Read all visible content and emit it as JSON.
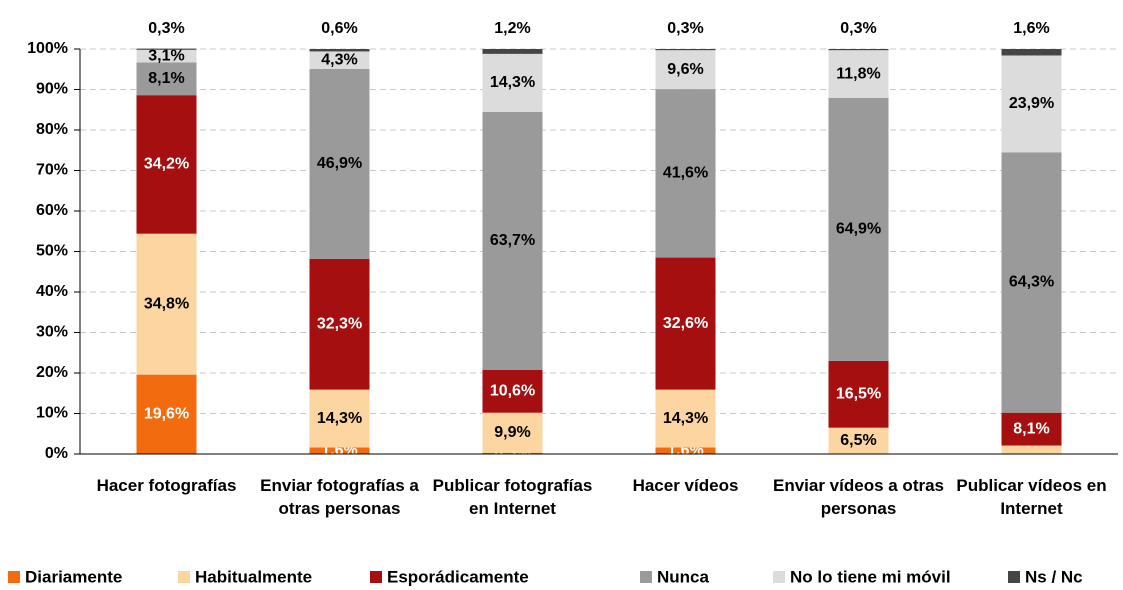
{
  "chart_data": {
    "type": "stacked_bar",
    "categories": [
      "Hacer fotografías",
      "Enviar fotografías a otras personas",
      "Publicar fotografías en Internet",
      "Hacer vídeos",
      "Enviar vídeos a otras personas",
      "Publicar vídeos en Internet"
    ],
    "series": [
      {
        "name": "Diariamente",
        "color": "#f26b0f",
        "label_color": "#ffffff",
        "values": [
          19.6,
          1.6,
          0.3,
          1.6,
          0,
          0
        ],
        "value_labels": [
          "19,6%",
          "1,6%",
          "0,3%",
          "1,6%",
          null,
          null
        ]
      },
      {
        "name": "Habitualmente",
        "color": "#fdd5a0",
        "label_color": "#000000",
        "values": [
          34.8,
          14.3,
          9.9,
          14.3,
          6.5,
          2.1
        ],
        "value_labels": [
          "34,8%",
          "14,3%",
          "9,9%",
          "14,3%",
          "6,5%",
          null
        ]
      },
      {
        "name": "Esporádicamente",
        "color": "#a50f0f",
        "label_color": "#ffffff",
        "values": [
          34.2,
          32.3,
          10.6,
          32.6,
          16.5,
          8.1
        ],
        "value_labels": [
          "34,2%",
          "32,3%",
          "10,6%",
          "32,6%",
          "16,5%",
          "8,1%"
        ]
      },
      {
        "name": "Nunca",
        "color": "#9a9a9a",
        "label_color": "#000000",
        "values": [
          8.1,
          46.9,
          63.7,
          41.6,
          64.9,
          64.3
        ],
        "value_labels": [
          "8,1%",
          "46,9%",
          "63,7%",
          "41,6%",
          "64,9%",
          "64,3%"
        ]
      },
      {
        "name": "No lo tiene mi móvil",
        "color": "#dcdcdc",
        "label_color": "#000000",
        "values": [
          3.1,
          4.3,
          14.3,
          9.6,
          11.8,
          23.9
        ],
        "value_labels": [
          "3,1%",
          "4,3%",
          "14,3%",
          "9,6%",
          "11,8%",
          "23,9%"
        ]
      },
      {
        "name": "Ns / Nc",
        "color": "#454545",
        "label_color": "#000000",
        "label_position": "above",
        "values": [
          0.3,
          0.6,
          1.2,
          0.3,
          0.3,
          1.6
        ],
        "value_labels": [
          "0,3%",
          "0,6%",
          "1,2%",
          "0,3%",
          "0,3%",
          "1,6%"
        ]
      }
    ],
    "ylim": [
      0,
      100
    ],
    "yticks": [
      {
        "value": 0,
        "label": "0%"
      },
      {
        "value": 10,
        "label": "10%"
      },
      {
        "value": 20,
        "label": "20%"
      },
      {
        "value": 30,
        "label": "30%"
      },
      {
        "value": 40,
        "label": "40%"
      },
      {
        "value": 50,
        "label": "50%"
      },
      {
        "value": 60,
        "label": "60%"
      },
      {
        "value": 70,
        "label": "70%"
      },
      {
        "value": 80,
        "label": "80%"
      },
      {
        "value": 90,
        "label": "90%"
      },
      {
        "value": 100,
        "label": "100%"
      }
    ],
    "grid": true,
    "legend": "bottom"
  }
}
